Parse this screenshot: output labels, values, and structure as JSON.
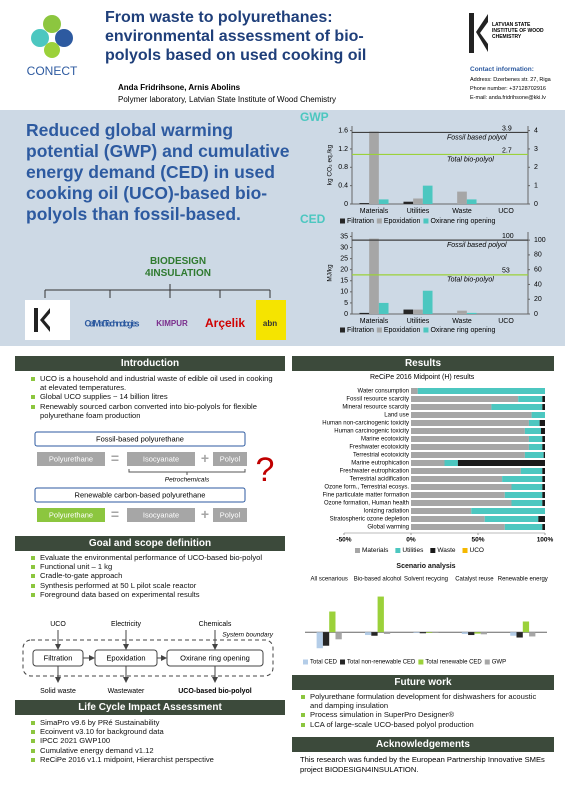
{
  "header": {
    "logo": "CONECT",
    "title": "From waste to polyurethanes: environmental assessment of bio-polyols based on used cooking oil",
    "authors": "Anda Fridrihsone, Arnis Abolins",
    "affiliation": "Polymer laboratory, Latvian State Institute of Wood Chemistry",
    "institute": "LATVIAN STATE INSTITUTE OF WOOD CHEMISTRY",
    "contact_title": "Contact information:",
    "contact": [
      "Address: Dzerbenes str. 27, Riga",
      "Phone number: +37128702916",
      "E-mail: anda.fridrihsone@kki.lv"
    ]
  },
  "highlight": "Reduced global warming potential (GWP) and cumulative energy demand (CED) in used cooking oil (UCO)-based bio-polyols than fossil-based.",
  "partners": {
    "project": "BIODESIGN 4INSULATION",
    "logos": [
      "CellMat Technologies",
      "KIMPUR",
      "Arçelik",
      "abn"
    ]
  },
  "gwp_chart": {
    "type": "bar",
    "title": "GWP",
    "y_label": "kg CO₂ eq./kg",
    "categories": [
      "Materials",
      "Utilities",
      "Waste",
      "UCO"
    ],
    "series": [
      {
        "name": "Filtration",
        "color": "#262626",
        "values": [
          0.02,
          0.05,
          0,
          0
        ]
      },
      {
        "name": "Epoxidation",
        "color": "#a6a6a6",
        "values": [
          1.58,
          0.12,
          0.27,
          0
        ]
      },
      {
        "name": "Oxirane ring opening",
        "color": "#4cc7c0",
        "values": [
          0.1,
          0.4,
          0.1,
          0
        ]
      }
    ],
    "ylim": [
      0,
      1.7
    ],
    "yticks": [
      0,
      0.4,
      0.8,
      1.2,
      1.6
    ],
    "y2lim": [
      0,
      4.25
    ],
    "y2ticks": [
      0,
      1,
      2,
      3,
      4
    ],
    "reference_lines": [
      {
        "name": "Fossil based polyol",
        "value": 3.9,
        "color": "#404040",
        "axis": "y2"
      },
      {
        "name": "Total bio-polyol",
        "value": 2.7,
        "color": "#9bd13a",
        "axis": "y2"
      }
    ]
  },
  "ced_chart": {
    "type": "bar",
    "title": "CED",
    "y_label": "MJ/kg",
    "categories": [
      "Materials",
      "Utilities",
      "Waste",
      "UCO"
    ],
    "series": [
      {
        "name": "Filtration",
        "color": "#262626",
        "values": [
          0.5,
          2,
          0,
          0
        ]
      },
      {
        "name": "Epoxidation",
        "color": "#a6a6a6",
        "values": [
          34,
          2,
          1.5,
          0
        ]
      },
      {
        "name": "Oxirane ring opening",
        "color": "#4cc7c0",
        "values": [
          5,
          10.5,
          0.5,
          0
        ]
      }
    ],
    "ylim": [
      0,
      37
    ],
    "yticks": [
      0,
      5,
      10,
      15,
      20,
      25,
      30,
      35
    ],
    "y2lim": [
      0,
      111
    ],
    "y2ticks": [
      0,
      20,
      40,
      60,
      80,
      100
    ],
    "reference_lines": [
      {
        "name": "Fossil based polyol",
        "value": 100,
        "color": "#404040",
        "axis": "y2"
      },
      {
        "name": "Total bio-polyol",
        "value": 53,
        "color": "#9bd13a",
        "axis": "y2"
      }
    ]
  },
  "intro": {
    "title": "Introduction",
    "bullets": [
      "UCO is a household and industrial waste of edible oil used in cooking at elevated temperatures.",
      "Global UCO supplies ~ 14 billion litres",
      "Renewably sourced carbon converted into bio-polyols for flexible polyurethane foam production"
    ],
    "fossil": {
      "title": "Fossil-based polyurethane",
      "terms": [
        "Polyurethane",
        "=",
        "Isocyanate",
        "+",
        "Polyol"
      ],
      "source": "Petrochemicals"
    },
    "renewable": {
      "title": "Renewable carbon-based polyurethane",
      "terms": [
        "Polyurethane",
        "=",
        "Isocyanate",
        "+",
        "Polyol"
      ]
    },
    "question": "?"
  },
  "goal": {
    "title": "Goal and scope definition",
    "bullets": [
      "Evaluate the environmental performance of UCO-based bio-polyol",
      "Functional unit – 1 kg",
      "Cradle-to-gate approach",
      "Synthesis performed at 50 L pilot scale reactor",
      "Foreground data based on experimental results"
    ],
    "flow": {
      "inputs": [
        "UCO",
        "Electricity",
        "Chemicals"
      ],
      "boundary": "System boundary",
      "steps": [
        "Filtration",
        "Epoxidation",
        "Oxirane ring opening"
      ],
      "outputs": [
        "Solid waste",
        "Wastewater",
        "UCO-based bio-polyol"
      ]
    }
  },
  "lci": {
    "title": "Life Cycle Impact Assessment",
    "bullets": [
      "SimaPro v9.6 by PRé Sustainability",
      "Ecoinvent v3.10 for background data",
      "IPCC 2021 GWP100",
      "Cumulative energy demand v1.12",
      "ReCiPe 2016 v1.1 midpoint, Hierarchist perspective"
    ]
  },
  "results": {
    "title": "Results",
    "chart": {
      "type": "stacked_bar",
      "orientation": "horizontal",
      "title": "ReCiPe 2016 Midpoint (H) results",
      "categories": [
        "Water consumption",
        "Fossil resource scarcity",
        "Mineral resource scarcity",
        "Land use",
        "Human non-carcinogenic toxicity",
        "Human carcinogenic toxicity",
        "Marine ecotoxicity",
        "Freshwater ecotoxicity",
        "Terrestrial ecotoxicity",
        "Marine eutrophication",
        "Freshwater eutrophication",
        "Terrestrial acidification",
        "Ozone form., Terrestrial ecosys.",
        "Fine particulate matter formation",
        "Ozone formation, Human health",
        "Ionizing radiation",
        "Stratospheric ozone depletion",
        "Global warming"
      ],
      "series": [
        {
          "name": "Materials",
          "color": "#a6a6a6",
          "values": [
            5,
            80,
            60,
            90,
            88,
            85,
            88,
            88,
            85,
            25,
            82,
            68,
            75,
            70,
            75,
            45,
            55,
            70
          ]
        },
        {
          "name": "Utilities",
          "color": "#4cc7c0",
          "values": [
            95,
            18,
            38,
            10,
            8,
            12,
            10,
            10,
            14,
            10,
            16,
            30,
            23,
            28,
            23,
            55,
            40,
            28
          ]
        },
        {
          "name": "Waste",
          "color": "#1a1a1a",
          "values": [
            0,
            2,
            2,
            0,
            4,
            3,
            2,
            2,
            1,
            65,
            2,
            2,
            2,
            2,
            2,
            0,
            5,
            2
          ]
        },
        {
          "name": "UCO",
          "color": "#f5b800",
          "values": [
            0,
            0,
            0,
            0,
            0,
            0,
            0,
            0,
            0,
            0,
            0,
            0,
            0,
            0,
            0,
            0,
            0,
            0
          ]
        }
      ],
      "xlim": [
        -50,
        100
      ],
      "xticks": [
        {
          "value": -50,
          "label": "-50%"
        },
        {
          "value": 0,
          "label": "0%"
        },
        {
          "value": 50,
          "label": "50%"
        },
        {
          "value": 100,
          "label": "100%"
        }
      ]
    }
  },
  "scenario": {
    "type": "bar",
    "title": "Scenario analysis",
    "categories": [
      "All scenarious",
      "Bio-based alcohol",
      "Solvent recycing",
      "Catalyst reuse",
      "Renewable energy"
    ],
    "series": [
      {
        "name": "Total CED",
        "color": "#b4cde8",
        "values": [
          -45,
          -8,
          -2,
          -5,
          -10
        ]
      },
      {
        "name": "Total non-renewable CED",
        "color": "#262626",
        "values": [
          -38,
          -10,
          -3,
          -8,
          -15
        ]
      },
      {
        "name": "Total renewable CED",
        "color": "#9bd13a",
        "values": [
          58,
          100,
          -2,
          -4,
          30
        ]
      },
      {
        "name": "GWP",
        "color": "#a6a6a6",
        "values": [
          -20,
          -5,
          -2,
          -6,
          -12
        ]
      }
    ],
    "ylim": [
      -50,
      110
    ]
  },
  "future": {
    "title": "Future work",
    "bullets": [
      "Polyurethane formulation development for dishwashers for acoustic and damping insulation",
      "Process simulation in SuperPro Designer®",
      "LCA of large-scale UCO-based polyol production"
    ]
  },
  "ack": {
    "title": "Acknowledgements",
    "text": "This research was funded by the European Partnership Innovative SMEs project BIODESIGN4INSULATION."
  }
}
